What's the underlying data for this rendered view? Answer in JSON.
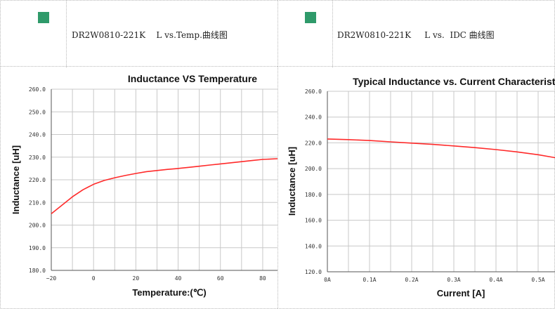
{
  "colors": {
    "marker": "#2f9a6a",
    "curve": "#ff2a2a",
    "grid": "#c8c8c8",
    "axis": "#555555"
  },
  "left_header": {
    "marker_icon": "green-square",
    "text": "DR2W0810-221K    L vs.Temp.曲线图"
  },
  "right_header": {
    "marker_icon": "green-square",
    "text": "DR2W0810-221K     L vs.  IDC 曲线图"
  },
  "chart_data": [
    {
      "type": "line",
      "title": "Inductance VS Temperature",
      "xlabel": "Temperature:(℃)",
      "ylabel": "Inductance [uH]",
      "xlim": [
        -20,
        87
      ],
      "ylim": [
        180,
        260
      ],
      "x_ticks": [
        -20,
        -10,
        0,
        10,
        20,
        30,
        40,
        50,
        60,
        70,
        80
      ],
      "x_tick_labels": [
        "−20",
        "",
        "0",
        "",
        "20",
        "",
        "40",
        "",
        "60",
        "",
        "80"
      ],
      "y_ticks": [
        180,
        190,
        200,
        210,
        220,
        230,
        240,
        250,
        260
      ],
      "y_tick_labels": [
        "180.0",
        "190.0",
        "200.0",
        "210.0",
        "220.0",
        "230.0",
        "240.0",
        "250.0",
        "260.0"
      ],
      "grid": true,
      "series": [
        {
          "x": [
            -20,
            -15,
            -10,
            -5,
            0,
            5,
            10,
            15,
            20,
            25,
            30,
            35,
            40,
            45,
            50,
            55,
            60,
            65,
            70,
            75,
            80,
            87
          ],
          "y": [
            205.0,
            208.7,
            212.5,
            215.6,
            218.0,
            219.7,
            220.9,
            221.9,
            222.8,
            223.6,
            224.1,
            224.6,
            225.0,
            225.5,
            226.0,
            226.5,
            227.0,
            227.5,
            228.0,
            228.5,
            229.0,
            229.3
          ]
        }
      ]
    },
    {
      "type": "line",
      "title": "Typical Inductance vs. Current Characteristics",
      "xlabel": "Current [A]",
      "ylabel": "Inductance [uH]",
      "xlim": [
        0,
        0.54
      ],
      "ylim": [
        120,
        260
      ],
      "x_ticks": [
        0,
        0.05,
        0.1,
        0.15,
        0.2,
        0.25,
        0.3,
        0.35,
        0.4,
        0.45,
        0.5
      ],
      "x_tick_labels": [
        "0A",
        "",
        "0.1A",
        "",
        "0.2A",
        "",
        "0.3A",
        "",
        "0.4A",
        "",
        "0.5A"
      ],
      "y_ticks": [
        120,
        140,
        160,
        180,
        200,
        220,
        240,
        260
      ],
      "y_tick_labels": [
        "120.0",
        "140.0",
        "160.0",
        "180.0",
        "200.0",
        "220.0",
        "240.0",
        "260.0"
      ],
      "grid": true,
      "series": [
        {
          "x": [
            0,
            0.05,
            0.1,
            0.15,
            0.2,
            0.25,
            0.3,
            0.35,
            0.4,
            0.45,
            0.5,
            0.54
          ],
          "y": [
            223.0,
            222.5,
            221.8,
            220.8,
            219.8,
            218.8,
            217.6,
            216.3,
            214.8,
            213.0,
            210.8,
            208.5
          ]
        }
      ]
    }
  ]
}
